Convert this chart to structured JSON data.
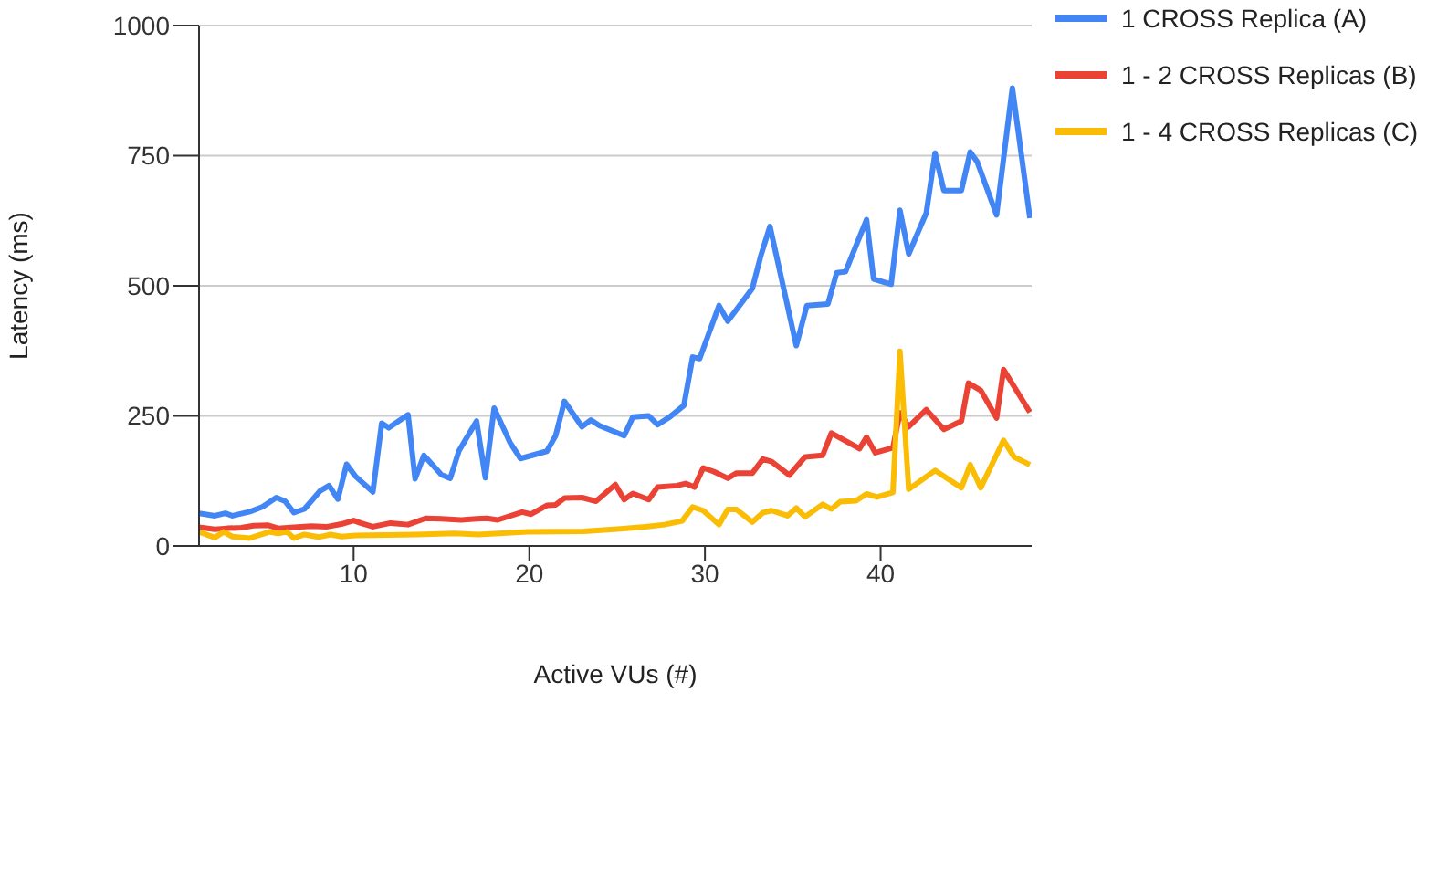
{
  "chart_data": {
    "type": "line",
    "xlabel": "Active VUs (#)",
    "ylabel": "Latency (ms)",
    "xlim": [
      1.2,
      48.6
    ],
    "xticks": [
      10,
      20,
      30,
      40
    ],
    "ylim": [
      0,
      1000
    ],
    "yticks": [
      0,
      250,
      500,
      750,
      1000
    ],
    "grid": "y",
    "legend": "top right",
    "series": [
      {
        "name": "1 CROSS Replica (A)",
        "color": "#4285f4",
        "x": [
          1.2,
          2.1,
          2.7,
          3.1,
          4.1,
          4.8,
          5.6,
          6.1,
          6.6,
          7.2,
          8.1,
          8.6,
          9.1,
          9.6,
          10.1,
          11.1,
          11.6,
          12.0,
          13.1,
          13.5,
          14.0,
          15.0,
          15.5,
          16.0,
          17.0,
          17.5,
          18.0,
          18.9,
          19.5,
          21.0,
          21.5,
          22.0,
          23.0,
          23.5,
          24.0,
          24.9,
          25.4,
          25.9,
          26.8,
          27.3,
          28.0,
          28.8,
          29.3,
          29.7,
          30.8,
          31.3,
          32.7,
          33.2,
          33.7,
          35.2,
          35.8,
          37.0,
          37.5,
          38.0,
          39.2,
          39.6,
          40.6,
          41.1,
          41.6,
          42.6,
          43.1,
          43.6,
          44.6,
          45.1,
          45.5,
          46.6,
          47.5,
          48.5
        ],
        "values": [
          63,
          58,
          63,
          58,
          66,
          75,
          93,
          86,
          64,
          71,
          106,
          116,
          90,
          157,
          134,
          104,
          236,
          227,
          252,
          129,
          174,
          137,
          130,
          183,
          240,
          131,
          265,
          199,
          168,
          182,
          212,
          278,
          229,
          242,
          231,
          219,
          212,
          248,
          250,
          233,
          248,
          270,
          363,
          360,
          462,
          432,
          495,
          560,
          614,
          385,
          462,
          465,
          525,
          527,
          627,
          513,
          503,
          645,
          561,
          640,
          755,
          683,
          683,
          757,
          738,
          636,
          880,
          630
        ]
      },
      {
        "name": "1 - 2 CROSS Replicas (B)",
        "color": "#ea4335",
        "x": [
          1.2,
          2.1,
          2.8,
          3.6,
          4.3,
          5.1,
          5.7,
          6.6,
          7.6,
          8.5,
          9.3,
          10.0,
          10.4,
          11.1,
          12.1,
          13.1,
          14.1,
          15.0,
          16.1,
          17.0,
          17.6,
          18.2,
          19.6,
          20.1,
          21.0,
          21.5,
          22.0,
          23.0,
          23.8,
          24.9,
          25.4,
          25.9,
          26.8,
          27.3,
          28.4,
          28.9,
          29.4,
          29.9,
          30.5,
          31.3,
          31.8,
          32.7,
          33.3,
          33.8,
          34.8,
          35.7,
          36.7,
          37.2,
          38.8,
          39.2,
          39.7,
          40.7,
          41.1,
          41.6,
          42.6,
          43.6,
          44.6,
          45.0,
          45.7,
          46.6,
          47.0,
          48.5
        ],
        "values": [
          36,
          32,
          34,
          35,
          39,
          40,
          34,
          36,
          38,
          37,
          42,
          49,
          44,
          37,
          44,
          41,
          53,
          52,
          50,
          52,
          53,
          50,
          65,
          61,
          78,
          79,
          92,
          93,
          86,
          118,
          89,
          101,
          89,
          113,
          116,
          120,
          113,
          150,
          143,
          130,
          140,
          140,
          167,
          162,
          136,
          171,
          174,
          217,
          187,
          209,
          179,
          189,
          256,
          229,
          262,
          224,
          240,
          313,
          299,
          246,
          339,
          257
        ]
      },
      {
        "name": "1 - 4 CROSS Replicas (C)",
        "color": "#fbbc04",
        "x": [
          1.2,
          2.1,
          2.6,
          3.1,
          4.1,
          5.2,
          5.7,
          6.2,
          6.6,
          7.2,
          8.0,
          8.7,
          9.3,
          10.1,
          13.6,
          15.7,
          17.1,
          19.9,
          23.1,
          25.2,
          26.6,
          27.7,
          28.7,
          29.3,
          29.9,
          30.8,
          31.3,
          31.8,
          32.7,
          33.3,
          33.8,
          34.7,
          35.2,
          35.7,
          36.7,
          37.2,
          37.7,
          38.6,
          39.2,
          39.8,
          40.7,
          41.1,
          41.6,
          43.1,
          44.6,
          45.1,
          45.7,
          47.0,
          47.6,
          48.5
        ],
        "values": [
          27,
          16,
          27,
          18,
          15,
          27,
          24,
          27,
          15,
          22,
          17,
          22,
          18,
          20,
          22,
          24,
          22,
          27,
          28,
          33,
          37,
          41,
          48,
          75,
          68,
          41,
          70,
          70,
          46,
          64,
          68,
          58,
          73,
          56,
          80,
          71,
          85,
          87,
          100,
          94,
          103,
          374,
          109,
          145,
          112,
          156,
          112,
          203,
          171,
          156
        ]
      }
    ]
  }
}
